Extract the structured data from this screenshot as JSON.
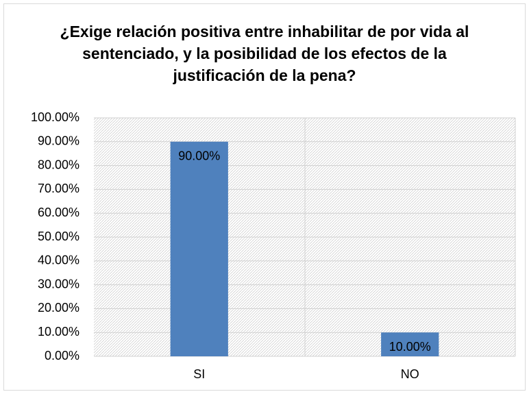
{
  "chart_data": {
    "type": "bar",
    "title": "¿Exige relación positiva entre inhabilitar de por vida al sentenciado, y la posibilidad de los efectos de la justificación de la pena?",
    "categories": [
      "SI",
      "NO"
    ],
    "values": [
      90,
      10
    ],
    "value_labels": [
      "90.00%",
      "10.00%"
    ],
    "color": "#4f81bd",
    "ylim": [
      0,
      100
    ],
    "yticks": [
      {
        "value": 0,
        "label": "0.00%"
      },
      {
        "value": 10,
        "label": "10.00%"
      },
      {
        "value": 20,
        "label": "20.00%"
      },
      {
        "value": 30,
        "label": "30.00%"
      },
      {
        "value": 40,
        "label": "40.00%"
      },
      {
        "value": 50,
        "label": "50.00%"
      },
      {
        "value": 60,
        "label": "60.00%"
      },
      {
        "value": 70,
        "label": "70.00%"
      },
      {
        "value": 80,
        "label": "80.00%"
      },
      {
        "value": 90,
        "label": "90.00%"
      },
      {
        "value": 100,
        "label": "100.00%"
      }
    ],
    "grid": true
  }
}
